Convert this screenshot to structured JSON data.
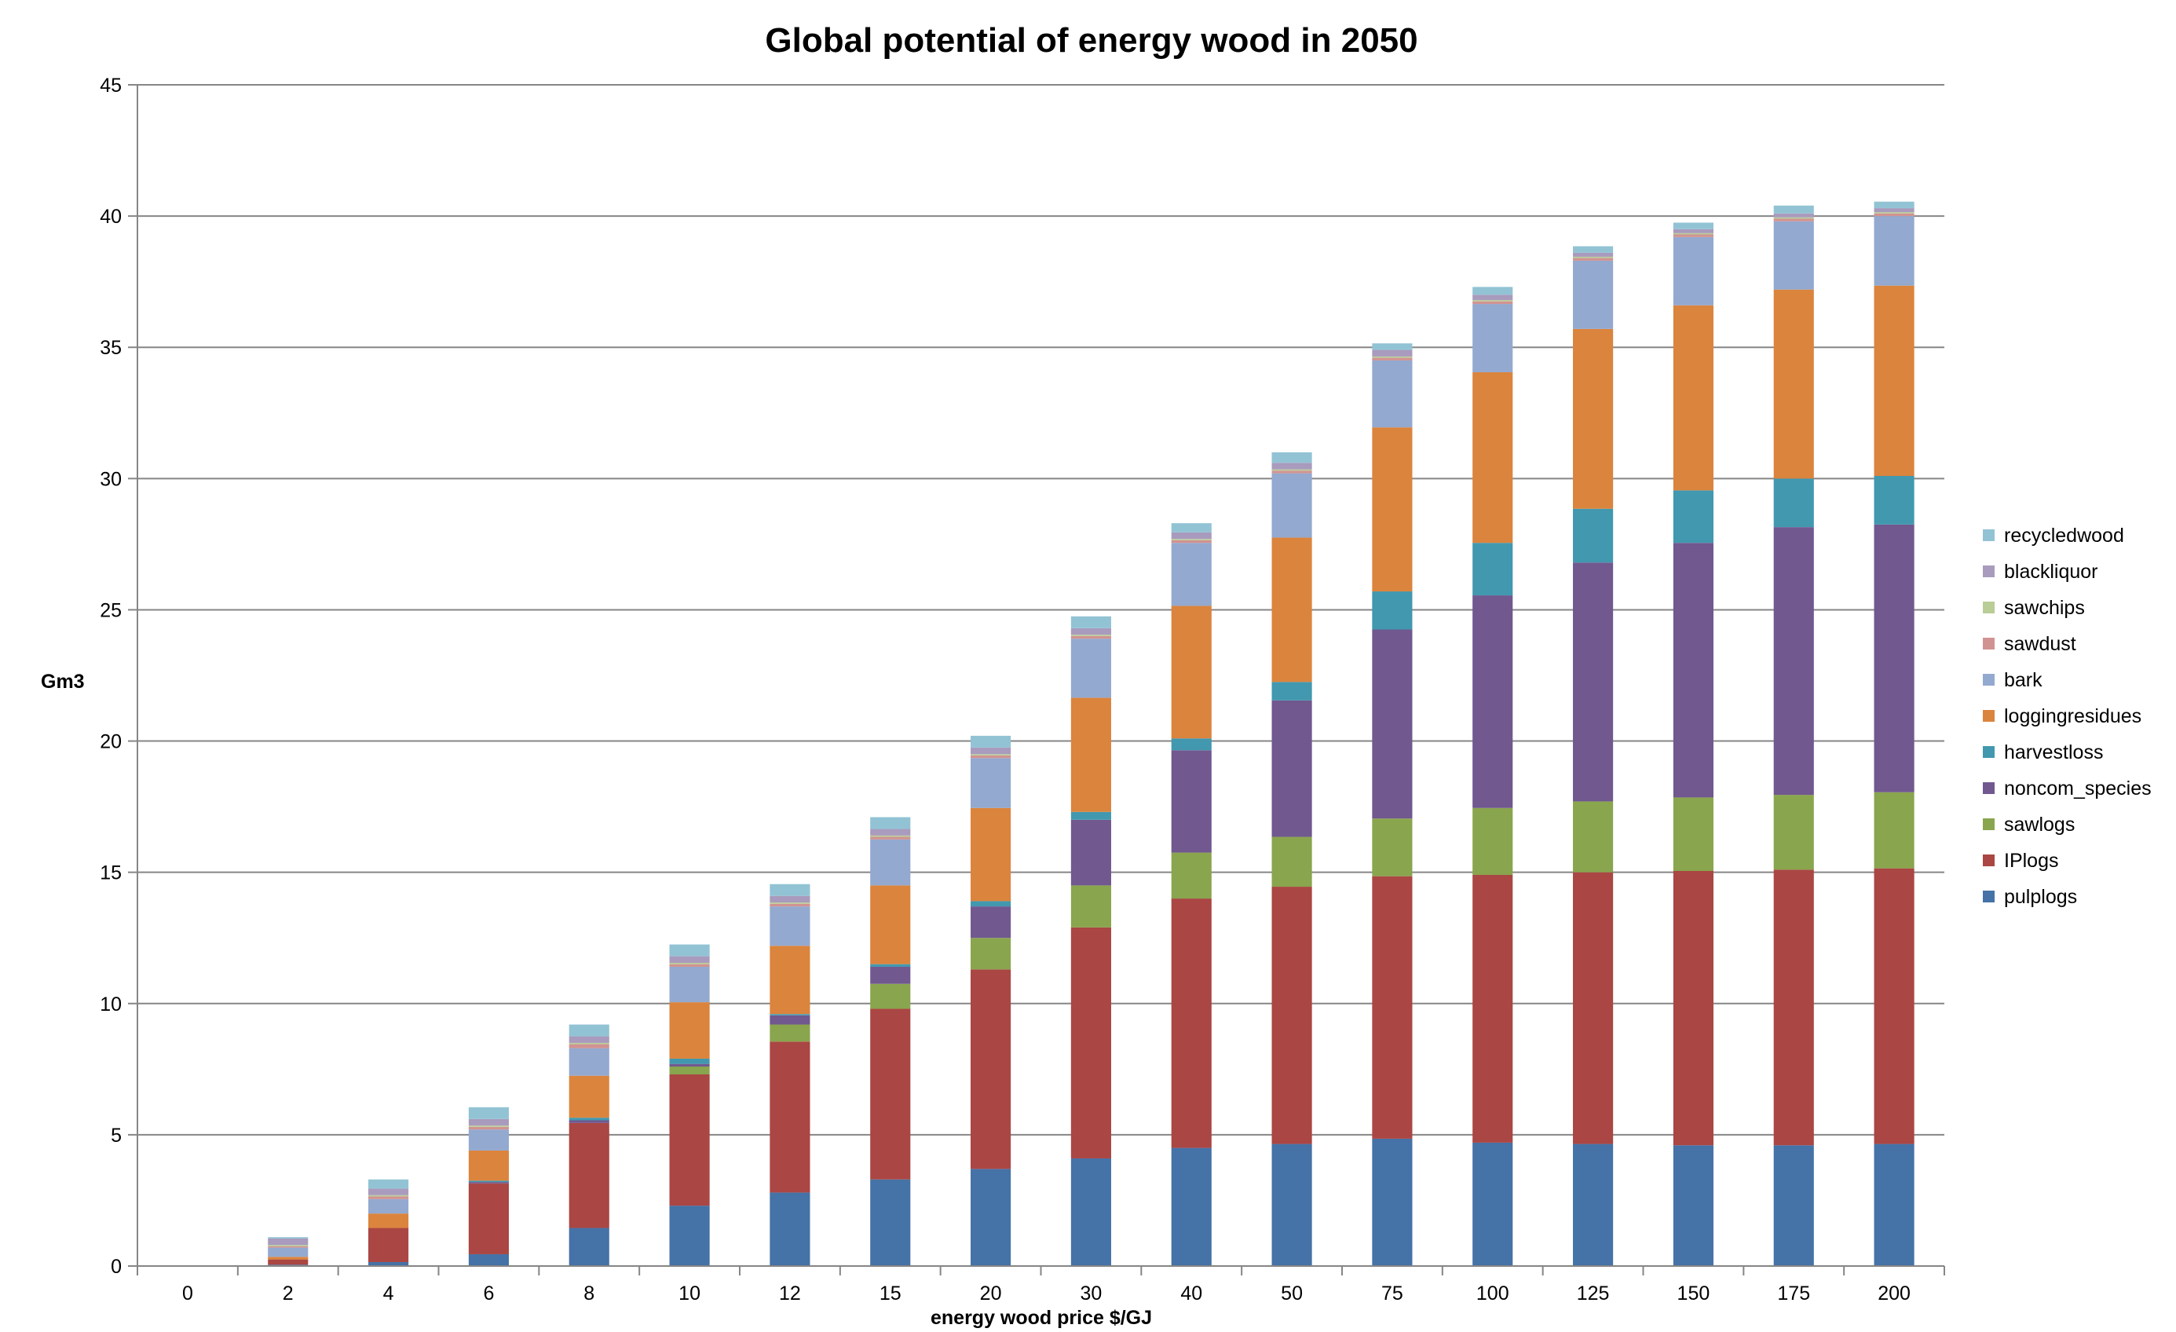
{
  "chart_data": {
    "type": "bar",
    "stacked": true,
    "title": "Global potential of energy wood in 2050",
    "xlabel": "energy wood price $/GJ",
    "ylabel": "Gm3",
    "ylim": [
      0,
      45
    ],
    "yticks": [
      0,
      5,
      10,
      15,
      20,
      25,
      30,
      35,
      40,
      45
    ],
    "grid": true,
    "legend_position": "right",
    "categories": [
      "0",
      "2",
      "4",
      "6",
      "8",
      "10",
      "12",
      "15",
      "20",
      "30",
      "40",
      "50",
      "75",
      "100",
      "125",
      "150",
      "175",
      "200"
    ],
    "series": [
      {
        "name": "pulplogs",
        "color": "#4572A7",
        "values": [
          0,
          0.05,
          0.15,
          0.45,
          1.45,
          2.3,
          2.8,
          3.3,
          3.7,
          4.1,
          4.5,
          4.65,
          4.85,
          4.7,
          4.65,
          4.6,
          4.6,
          4.65
        ]
      },
      {
        "name": "IPlogs",
        "color": "#AA4643",
        "values": [
          0,
          0.2,
          1.3,
          2.7,
          4.0,
          5.0,
          5.75,
          6.5,
          7.6,
          8.8,
          9.5,
          9.8,
          10.0,
          10.2,
          10.35,
          10.45,
          10.5,
          10.5
        ]
      },
      {
        "name": "sawlogs",
        "color": "#89A54E",
        "values": [
          0,
          0,
          0,
          0,
          0,
          0.3,
          0.65,
          0.95,
          1.2,
          1.6,
          1.75,
          1.9,
          2.2,
          2.55,
          2.7,
          2.8,
          2.85,
          2.9
        ]
      },
      {
        "name": "noncom_species",
        "color": "#71588F",
        "values": [
          0,
          0,
          0,
          0.05,
          0.1,
          0.1,
          0.35,
          0.65,
          1.2,
          2.5,
          3.9,
          5.2,
          7.2,
          8.1,
          9.1,
          9.7,
          10.2,
          10.2
        ]
      },
      {
        "name": "harvestloss",
        "color": "#4198AF",
        "values": [
          0,
          0,
          0,
          0.05,
          0.1,
          0.2,
          0.05,
          0.1,
          0.2,
          0.3,
          0.45,
          0.7,
          1.45,
          2.0,
          2.05,
          2.0,
          1.85,
          1.85
        ]
      },
      {
        "name": "loggingresidues",
        "color": "#DB843D",
        "values": [
          0,
          0.1,
          0.55,
          1.15,
          1.6,
          2.15,
          2.6,
          3.0,
          3.55,
          4.35,
          5.05,
          5.5,
          6.25,
          6.5,
          6.85,
          7.05,
          7.2,
          7.25
        ]
      },
      {
        "name": "bark",
        "color": "#93A9CF",
        "values": [
          0,
          0.35,
          0.55,
          0.8,
          1.05,
          1.35,
          1.5,
          1.75,
          1.9,
          2.25,
          2.4,
          2.45,
          2.55,
          2.6,
          2.6,
          2.6,
          2.6,
          2.65
        ]
      },
      {
        "name": "sawdust",
        "color": "#D19392",
        "values": [
          0,
          0.05,
          0.1,
          0.1,
          0.15,
          0.1,
          0.1,
          0.1,
          0.1,
          0.1,
          0.1,
          0.1,
          0.1,
          0.1,
          0.1,
          0.1,
          0.1,
          0.1
        ]
      },
      {
        "name": "sawchips",
        "color": "#B9CD96",
        "values": [
          0,
          0.05,
          0.05,
          0.05,
          0.05,
          0.05,
          0.05,
          0.05,
          0.05,
          0.05,
          0.05,
          0.05,
          0.05,
          0.05,
          0.05,
          0.05,
          0.05,
          0.05
        ]
      },
      {
        "name": "blackliquor",
        "color": "#A99BBD",
        "values": [
          0,
          0.25,
          0.25,
          0.25,
          0.25,
          0.25,
          0.25,
          0.25,
          0.25,
          0.25,
          0.25,
          0.25,
          0.25,
          0.2,
          0.15,
          0.15,
          0.15,
          0.15
        ]
      },
      {
        "name": "recycledwood",
        "color": "#92C3D4",
        "values": [
          0,
          0.05,
          0.35,
          0.45,
          0.45,
          0.45,
          0.45,
          0.45,
          0.45,
          0.45,
          0.35,
          0.4,
          0.25,
          0.3,
          0.25,
          0.25,
          0.3,
          0.25
        ]
      }
    ]
  }
}
